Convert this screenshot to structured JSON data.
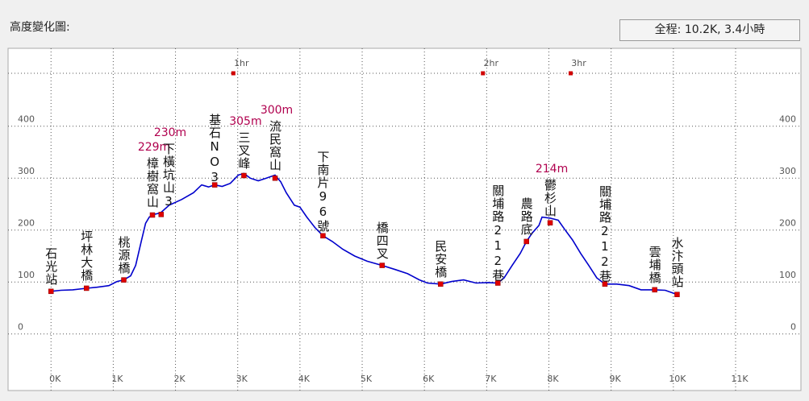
{
  "title": "高度變化圖:",
  "summary": "全程: 10.2K, 3.4小時",
  "chart_data": {
    "type": "line",
    "xlim": [
      -0.69,
      12.05
    ],
    "ylim": [
      -109,
      550
    ],
    "xticks": [
      {
        "value": 0,
        "label": "0K"
      },
      {
        "value": 1,
        "label": "1K"
      },
      {
        "value": 2,
        "label": "2K"
      },
      {
        "value": 3,
        "label": "3K"
      },
      {
        "value": 4,
        "label": "4K"
      },
      {
        "value": 5,
        "label": "5K"
      },
      {
        "value": 6,
        "label": "6K"
      },
      {
        "value": 7,
        "label": "7K"
      },
      {
        "value": 8,
        "label": "8K"
      },
      {
        "value": 9,
        "label": "9K"
      },
      {
        "value": 10,
        "label": "10K"
      },
      {
        "value": 11,
        "label": "11K"
      }
    ],
    "yticks": [
      0,
      100,
      200,
      300,
      400
    ],
    "grid": true,
    "profile": {
      "color": "#0000cc",
      "x": [
        0.0,
        0.16,
        0.35,
        0.57,
        0.74,
        0.93,
        1.06,
        1.17,
        1.28,
        1.36,
        1.45,
        1.52,
        1.58,
        1.65,
        1.76,
        1.9,
        2.1,
        2.29,
        2.42,
        2.53,
        2.63,
        2.75,
        2.88,
        3.01,
        3.1,
        3.2,
        3.33,
        3.46,
        3.6,
        3.69,
        3.78,
        3.91,
        4.0,
        4.11,
        4.24,
        4.37,
        4.52,
        4.69,
        4.88,
        5.08,
        5.32,
        5.53,
        5.73,
        5.92,
        6.05,
        6.26,
        6.44,
        6.63,
        6.83,
        7.02,
        7.18,
        7.28,
        7.41,
        7.54,
        7.64,
        7.73,
        7.84,
        7.89,
        8.02,
        8.15,
        8.25,
        8.38,
        8.51,
        8.64,
        8.77,
        8.9,
        9.09,
        9.29,
        9.48,
        9.7,
        9.87,
        10.06
      ],
      "values": [
        82,
        84,
        85,
        88,
        90,
        93,
        101,
        104,
        112,
        132,
        178,
        213,
        225,
        230,
        233,
        248,
        259,
        272,
        287,
        283,
        287,
        284,
        290,
        306,
        309,
        300,
        295,
        300,
        306,
        293,
        272,
        248,
        244,
        225,
        205,
        189,
        178,
        163,
        150,
        140,
        132,
        124,
        116,
        104,
        98,
        96,
        101,
        104,
        98,
        99,
        98,
        108,
        132,
        155,
        178,
        194,
        209,
        225,
        223,
        219,
        202,
        181,
        155,
        132,
        108,
        96,
        96,
        93,
        85,
        85,
        84,
        76
      ]
    },
    "waypoints": [
      {
        "name": "石光站",
        "km": 0.0,
        "elevation": 82
      },
      {
        "name": "坪林大橋",
        "km": 0.57,
        "elevation": 88
      },
      {
        "name": "桃源橋",
        "km": 1.17,
        "elevation": 104
      },
      {
        "name": "樟樹窩山",
        "km": 1.63,
        "elevation": 229,
        "elevation_label": "229m"
      },
      {
        "name": "下橫坑山3",
        "km": 1.77,
        "elevation": 230,
        "elevation_label": "230m"
      },
      {
        "name": "基石NO3",
        "km": 2.63,
        "elevation": 287
      },
      {
        "name": "三叉峰",
        "km": 3.1,
        "elevation": 305,
        "elevation_label": "305m"
      },
      {
        "name": "流民窩山",
        "km": 3.6,
        "elevation": 300,
        "elevation_label": "300m"
      },
      {
        "name": "下南片96號",
        "km": 4.37,
        "elevation": 189
      },
      {
        "name": "橋四叉",
        "km": 5.32,
        "elevation": 132
      },
      {
        "name": "民安橋",
        "km": 6.26,
        "elevation": 96
      },
      {
        "name": "關埔路212巷",
        "km": 7.18,
        "elevation": 98
      },
      {
        "name": "農路底",
        "km": 7.64,
        "elevation": 178
      },
      {
        "name": "鬱杉山",
        "km": 8.02,
        "elevation": 214,
        "elevation_label": "214m"
      },
      {
        "name": "關埔路212巷",
        "km": 8.9,
        "elevation": 96
      },
      {
        "name": "雲埔橋",
        "km": 9.7,
        "elevation": 85
      },
      {
        "name": "水汴頭站",
        "km": 10.06,
        "elevation": 76
      }
    ],
    "time_markers": [
      {
        "label": "1hr",
        "km": 2.93
      },
      {
        "label": "2hr",
        "km": 6.94
      },
      {
        "label": "3hr",
        "km": 8.35
      }
    ]
  }
}
